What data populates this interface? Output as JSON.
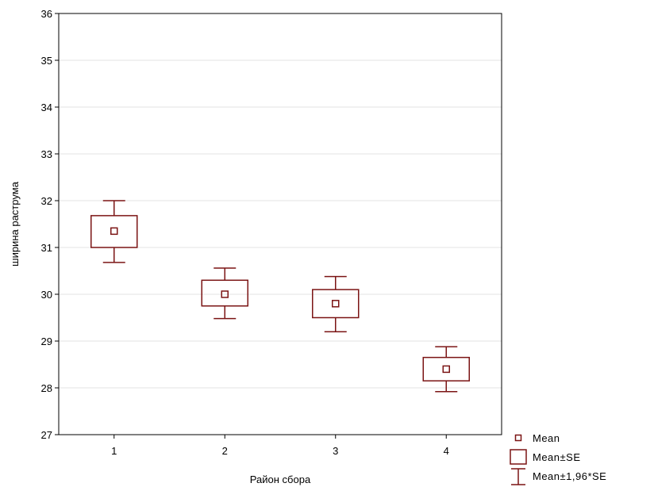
{
  "chart_data": {
    "type": "box",
    "xlabel": "Район сбора",
    "ylabel": "ширина раструма",
    "ylim": [
      27,
      36
    ],
    "yticks": [
      27,
      28,
      29,
      30,
      31,
      32,
      33,
      34,
      35,
      36
    ],
    "categories": [
      "1",
      "2",
      "3",
      "4"
    ],
    "grid": "horizontal",
    "legend_position": "bottom-right",
    "color": "#7b1414",
    "series": [
      {
        "category": "1",
        "mean": 31.35,
        "mean_minus_se": 31.0,
        "mean_plus_se": 31.68,
        "mean_minus_196se": 30.68,
        "mean_plus_196se": 32.0
      },
      {
        "category": "2",
        "mean": 30.0,
        "mean_minus_se": 29.75,
        "mean_plus_se": 30.3,
        "mean_minus_196se": 29.48,
        "mean_plus_196se": 30.56
      },
      {
        "category": "3",
        "mean": 29.8,
        "mean_minus_se": 29.5,
        "mean_plus_se": 30.1,
        "mean_minus_196se": 29.2,
        "mean_plus_196se": 30.38
      },
      {
        "category": "4",
        "mean": 28.4,
        "mean_minus_se": 28.15,
        "mean_plus_se": 28.65,
        "mean_minus_196se": 27.92,
        "mean_plus_196se": 28.88
      }
    ],
    "legend": [
      {
        "symbol": "mean",
        "label": "Mean"
      },
      {
        "symbol": "se-box",
        "label": "Mean±SE"
      },
      {
        "symbol": "whisker",
        "label": "Mean±1,96*SE"
      }
    ]
  }
}
